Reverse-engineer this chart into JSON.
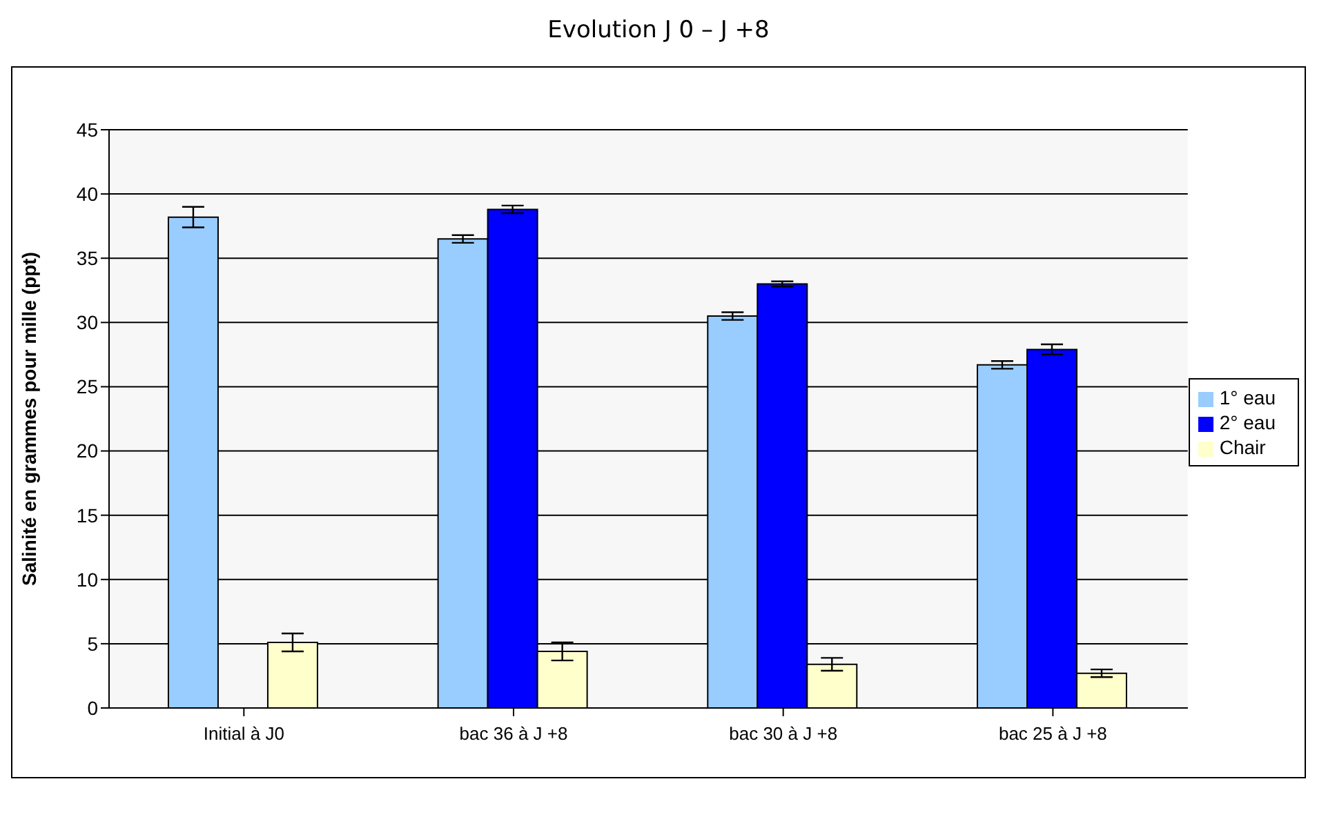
{
  "chart_data": {
    "type": "bar",
    "title": "Evolution J 0 – J +8",
    "ylabel": "Salinité en grammes pour mille (ppt)",
    "categories": [
      "Initial à J0",
      "bac 36 à J +8",
      "bac 30 à J +8",
      "bac 25 à J +8"
    ],
    "series": [
      {
        "name": "1° eau",
        "color": "#99ccff",
        "values": [
          38.2,
          36.5,
          30.5,
          26.7
        ],
        "errors": [
          0.8,
          0.3,
          0.3,
          0.3
        ]
      },
      {
        "name": "2° eau",
        "color": "#0000ff",
        "values": [
          null,
          38.8,
          33.0,
          27.9
        ],
        "errors": [
          null,
          0.3,
          0.2,
          0.4
        ]
      },
      {
        "name": "Chair",
        "color": "#ffffcc",
        "values": [
          5.1,
          4.4,
          3.4,
          2.7
        ],
        "errors": [
          0.7,
          0.7,
          0.5,
          0.3
        ]
      }
    ],
    "ylim": [
      0,
      45
    ],
    "yticks": [
      0,
      5,
      10,
      15,
      20,
      25,
      30,
      35,
      40,
      45
    ],
    "grid": "y",
    "legend": "right"
  }
}
